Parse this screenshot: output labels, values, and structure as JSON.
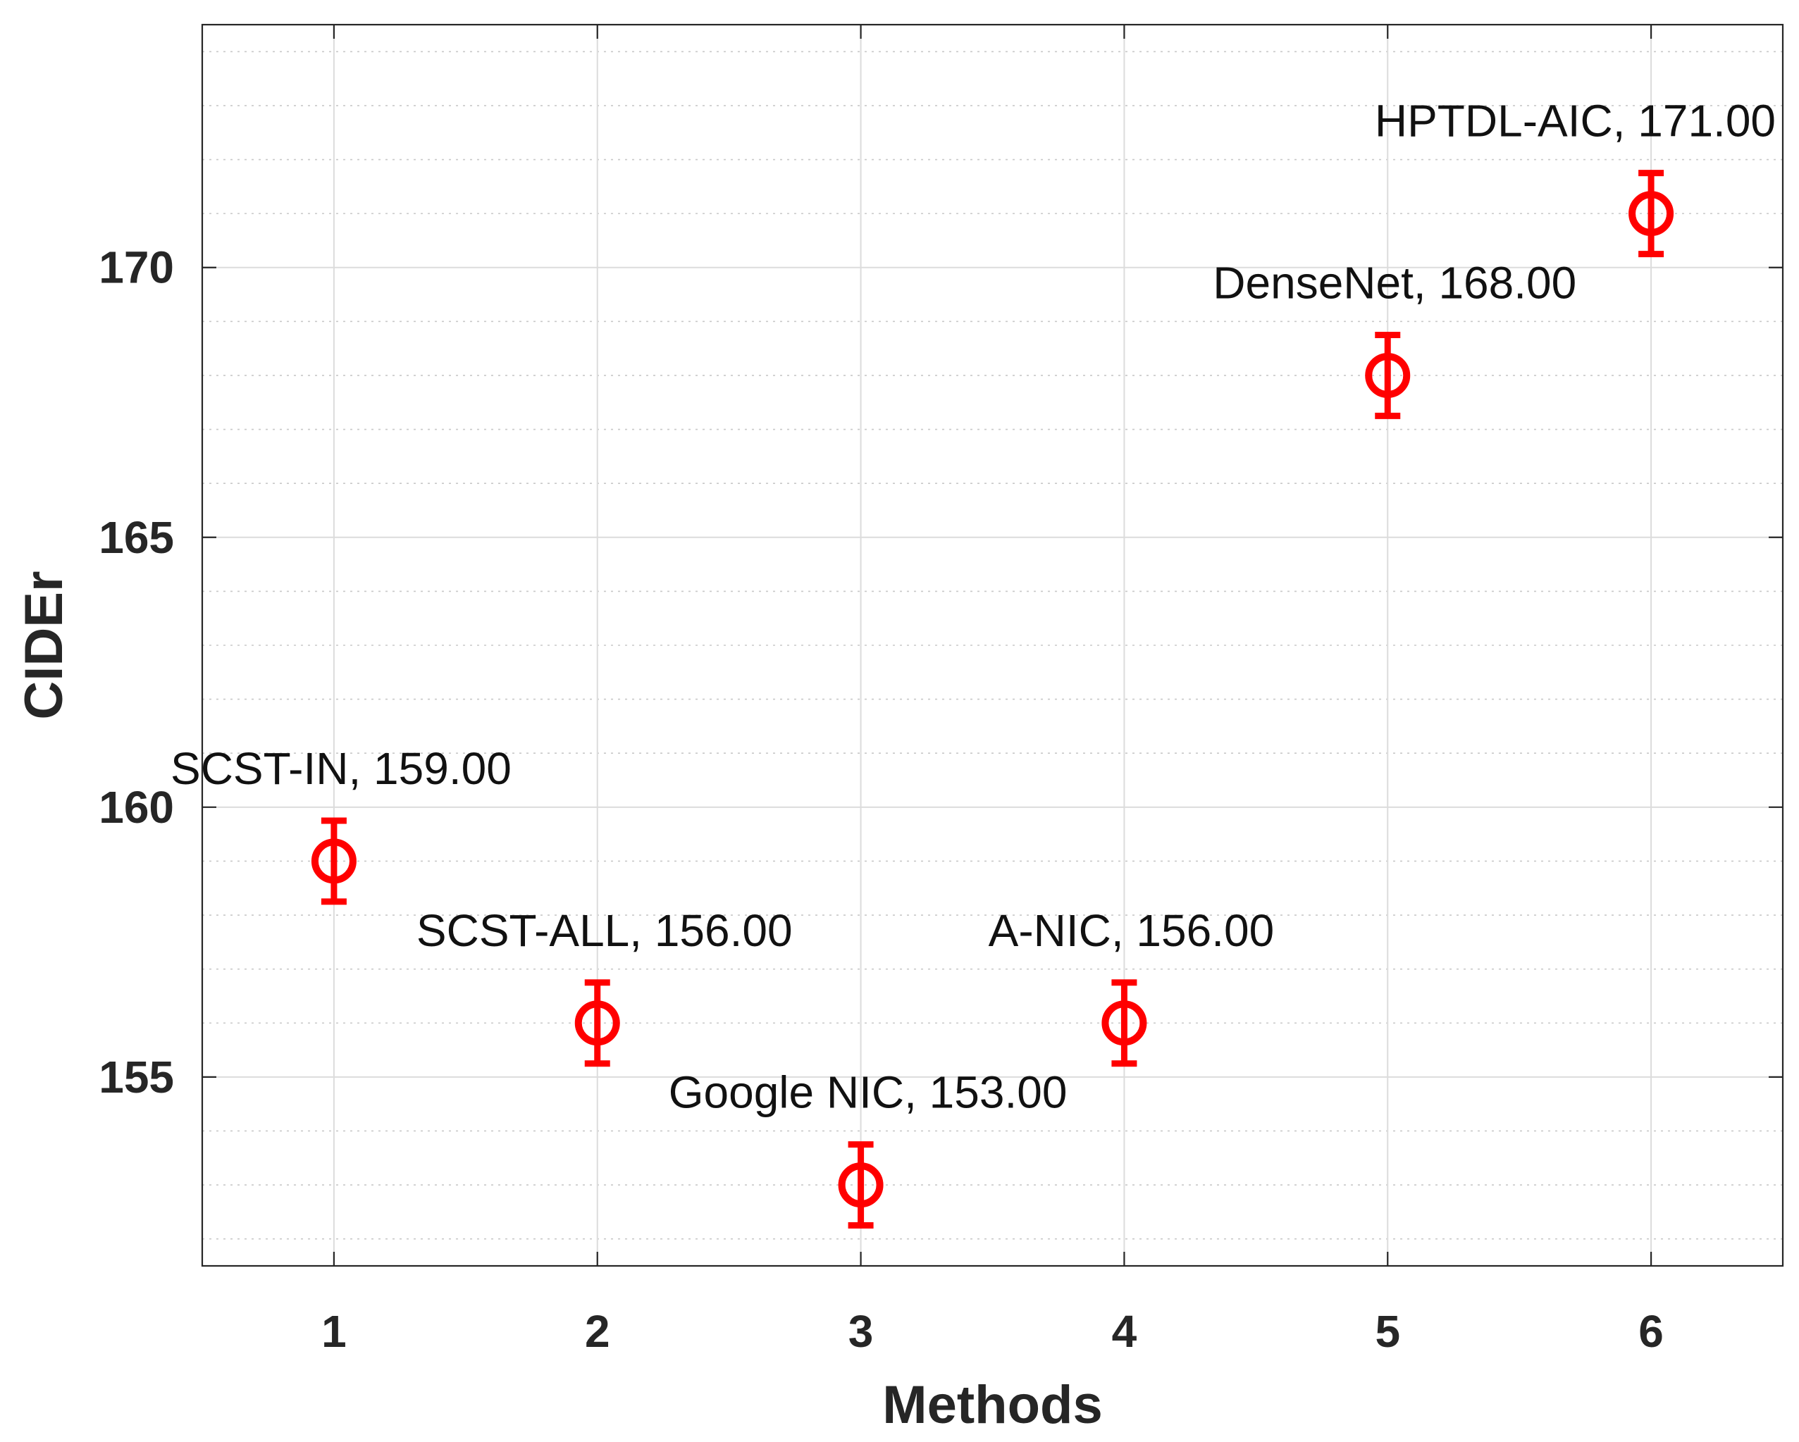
{
  "chart_data": {
    "type": "scatter",
    "xlabel": "Methods",
    "ylabel": "CIDEr",
    "xlim": [
      0.5,
      6.5
    ],
    "ylim": [
      151.5,
      174.5
    ],
    "x_ticks": [
      1,
      2,
      3,
      4,
      5,
      6
    ],
    "y_ticks": [
      155,
      160,
      165,
      170
    ],
    "grid": true,
    "minor_grid": true,
    "marker": "circle with error bar",
    "color": "#ff0000",
    "points": [
      {
        "x": 1,
        "y": 159,
        "err": 0.75,
        "label": "SCST-IN, 159.00"
      },
      {
        "x": 2,
        "y": 156,
        "err": 0.75,
        "label": "SCST-ALL, 156.00"
      },
      {
        "x": 3,
        "y": 153,
        "err": 0.75,
        "label": "Google NIC, 153.00"
      },
      {
        "x": 4,
        "y": 156,
        "err": 0.75,
        "label": "A-NIC, 156.00"
      },
      {
        "x": 5,
        "y": 168,
        "err": 0.75,
        "label": "DenseNet, 168.00"
      },
      {
        "x": 6,
        "y": 171,
        "err": 0.75,
        "label": "HPTDL-AIC, 171.00"
      }
    ]
  }
}
